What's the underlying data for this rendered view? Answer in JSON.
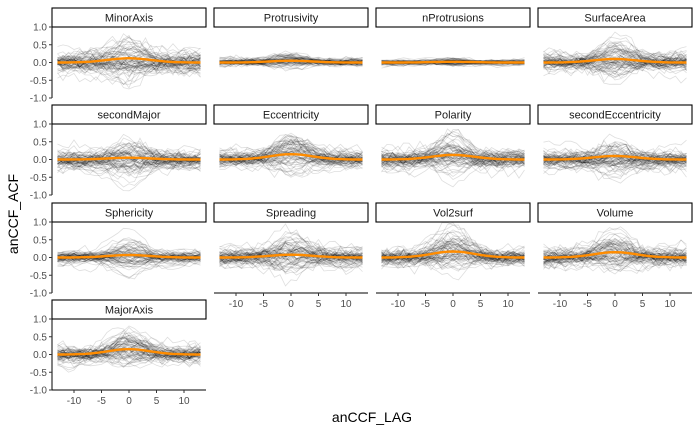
{
  "chart_data": {
    "type": "line",
    "layout": "facet-grid",
    "xlabel": "anCCF_LAG",
    "ylabel": "anCCF_ACF",
    "xlim": [
      -14,
      14
    ],
    "ylim": [
      -1.0,
      1.0
    ],
    "x_ticks": [
      -10,
      -5,
      0,
      5,
      10
    ],
    "x_tick_labels": [
      "-10",
      "-5",
      "0",
      "5",
      "10"
    ],
    "y_ticks": [
      1.0,
      0.5,
      0.0,
      -0.5,
      -1.0
    ],
    "y_tick_labels": [
      "1.0",
      "0.5",
      "0.0",
      "-0.5",
      "-1.0"
    ],
    "lag_min": -13,
    "lag_max": 13,
    "mean_color": "#ff8c00",
    "trace_color": "#000000",
    "grid": false,
    "panels": [
      {
        "title": "MinorAxis",
        "mean_peak": 0.12,
        "mean_base": 0.0,
        "spread": 0.32,
        "peak_spread": 0.45
      },
      {
        "title": "Protrusivity",
        "mean_peak": 0.05,
        "mean_base": 0.0,
        "spread": 0.14,
        "peak_spread": 0.2
      },
      {
        "title": "nProtrusions",
        "mean_peak": 0.02,
        "mean_base": 0.0,
        "spread": 0.08,
        "peak_spread": 0.1
      },
      {
        "title": "SurfaceArea",
        "mean_peak": 0.1,
        "mean_base": 0.0,
        "spread": 0.28,
        "peak_spread": 0.55
      },
      {
        "title": "secondMajor",
        "mean_peak": 0.05,
        "mean_base": 0.0,
        "spread": 0.3,
        "peak_spread": 0.5
      },
      {
        "title": "Eccentricity",
        "mean_peak": 0.15,
        "mean_base": 0.0,
        "spread": 0.28,
        "peak_spread": 0.45
      },
      {
        "title": "Polarity",
        "mean_peak": 0.13,
        "mean_base": 0.0,
        "spread": 0.3,
        "peak_spread": 0.45
      },
      {
        "title": "secondEccentricity",
        "mean_peak": 0.1,
        "mean_base": 0.0,
        "spread": 0.3,
        "peak_spread": 0.45
      },
      {
        "title": "Sphericity",
        "mean_peak": 0.07,
        "mean_base": 0.0,
        "spread": 0.2,
        "peak_spread": 0.45
      },
      {
        "title": "Spreading",
        "mean_peak": 0.08,
        "mean_base": 0.0,
        "spread": 0.3,
        "peak_spread": 0.45
      },
      {
        "title": "Vol2surf",
        "mean_peak": 0.17,
        "mean_base": 0.0,
        "spread": 0.3,
        "peak_spread": 0.55
      },
      {
        "title": "Volume",
        "mean_peak": 0.15,
        "mean_base": 0.0,
        "spread": 0.3,
        "peak_spread": 0.55
      },
      {
        "title": "MajorAxis",
        "mean_peak": 0.15,
        "mean_base": 0.0,
        "spread": 0.28,
        "peak_spread": 0.45
      }
    ]
  }
}
